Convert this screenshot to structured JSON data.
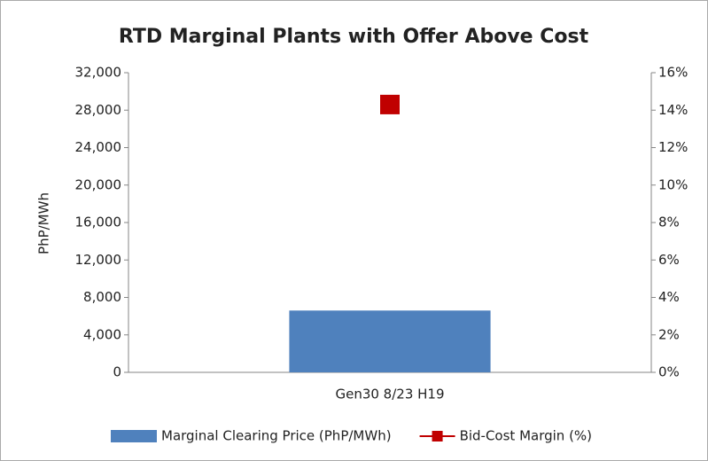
{
  "chart_data": {
    "type": "bar",
    "title": "RTD Marginal Plants with Offer Above Cost",
    "y_label": "PhP/MWh",
    "categories": [
      "Gen30 8/23 H19"
    ],
    "series": [
      {
        "name": "Marginal Clearing Price (PhP/MWh)",
        "type": "bar",
        "color": "#4f81bd",
        "values": [
          6600
        ]
      },
      {
        "name": "Bid-Cost Margin (%)",
        "type": "line",
        "color": "#c00000",
        "axis": "y2",
        "values": [
          14.3
        ]
      }
    ],
    "ylim": [
      0,
      32000
    ],
    "yticks": [
      0,
      {
        "value": 4000,
        "label": "4,000"
      },
      {
        "value": 8000,
        "label": "8,000"
      },
      {
        "value": 12000,
        "label": "12,000"
      },
      {
        "value": 16000,
        "label": "16,000"
      },
      {
        "value": 20000,
        "label": "20,000"
      },
      {
        "value": 24000,
        "label": "24,000"
      },
      {
        "value": 28000,
        "label": "28,000"
      },
      {
        "value": 32000,
        "label": "32,000"
      }
    ],
    "y2lim": [
      0,
      16
    ],
    "y2ticks": [
      {
        "value": 0,
        "label": "0%"
      },
      {
        "value": 2,
        "label": "2%"
      },
      {
        "value": 4,
        "label": "4%"
      },
      {
        "value": 6,
        "label": "6%"
      },
      {
        "value": 8,
        "label": "8%"
      },
      {
        "value": 10,
        "label": "10%"
      },
      {
        "value": 12,
        "label": "12%"
      },
      {
        "value": 14,
        "label": "14%"
      },
      {
        "value": 16,
        "label": "16%"
      }
    ],
    "grid": false,
    "legend": "bottom"
  }
}
